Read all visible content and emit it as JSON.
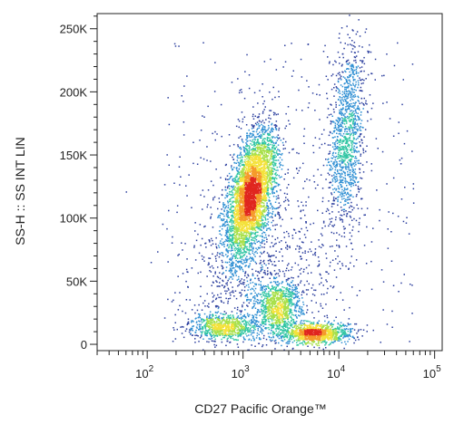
{
  "chart_data": {
    "type": "scatter",
    "style": "density-dot-plot",
    "title": "",
    "xlabel": "CD27 Pacific Orange™",
    "ylabel": "SS-H :: SS INT LIN",
    "x_scale": "log",
    "y_scale": "linear",
    "xlim": [
      30,
      120000
    ],
    "ylim": [
      -5000,
      262000
    ],
    "x_ticks": [
      {
        "value": 100,
        "base": "10",
        "exp": "2"
      },
      {
        "value": 1000,
        "base": "10",
        "exp": "3"
      },
      {
        "value": 10000,
        "base": "10",
        "exp": "4"
      },
      {
        "value": 100000,
        "base": "10",
        "exp": "5"
      }
    ],
    "y_ticks": [
      {
        "value": 0,
        "label": "0"
      },
      {
        "value": 50000,
        "label": "50K"
      },
      {
        "value": 100000,
        "label": "100K"
      },
      {
        "value": 150000,
        "label": "150K"
      },
      {
        "value": 200000,
        "label": "200K"
      },
      {
        "value": 250000,
        "label": "250K"
      }
    ],
    "grid": false,
    "legend": "none",
    "density_colormap": [
      "#2c3f9e",
      "#2f8fd3",
      "#32c6a4",
      "#a8e04a",
      "#f4e23a",
      "#f59a2a",
      "#e0261f"
    ],
    "populations": [
      {
        "x_center": 1200,
        "y_center": 120000,
        "x_log_sd": 0.11,
        "y_sd": 26000,
        "weight": 0.44,
        "tilt": 0.9
      },
      {
        "x_center": 12000,
        "y_center": 165000,
        "x_log_sd": 0.09,
        "y_sd": 38000,
        "weight": 0.13,
        "tilt": 0.4
      },
      {
        "x_center": 620,
        "y_center": 14000,
        "x_log_sd": 0.17,
        "y_sd": 5000,
        "weight": 0.09,
        "tilt": 0
      },
      {
        "x_center": 2300,
        "y_center": 30000,
        "x_log_sd": 0.12,
        "y_sd": 10000,
        "weight": 0.1,
        "tilt": 0
      },
      {
        "x_center": 5500,
        "y_center": 9000,
        "x_log_sd": 0.18,
        "y_sd": 4000,
        "weight": 0.13,
        "tilt": 0
      },
      {
        "x_center": 1500,
        "y_center": 60000,
        "x_log_sd": 0.4,
        "y_sd": 40000,
        "weight": 0.11,
        "tilt": 0
      }
    ]
  }
}
